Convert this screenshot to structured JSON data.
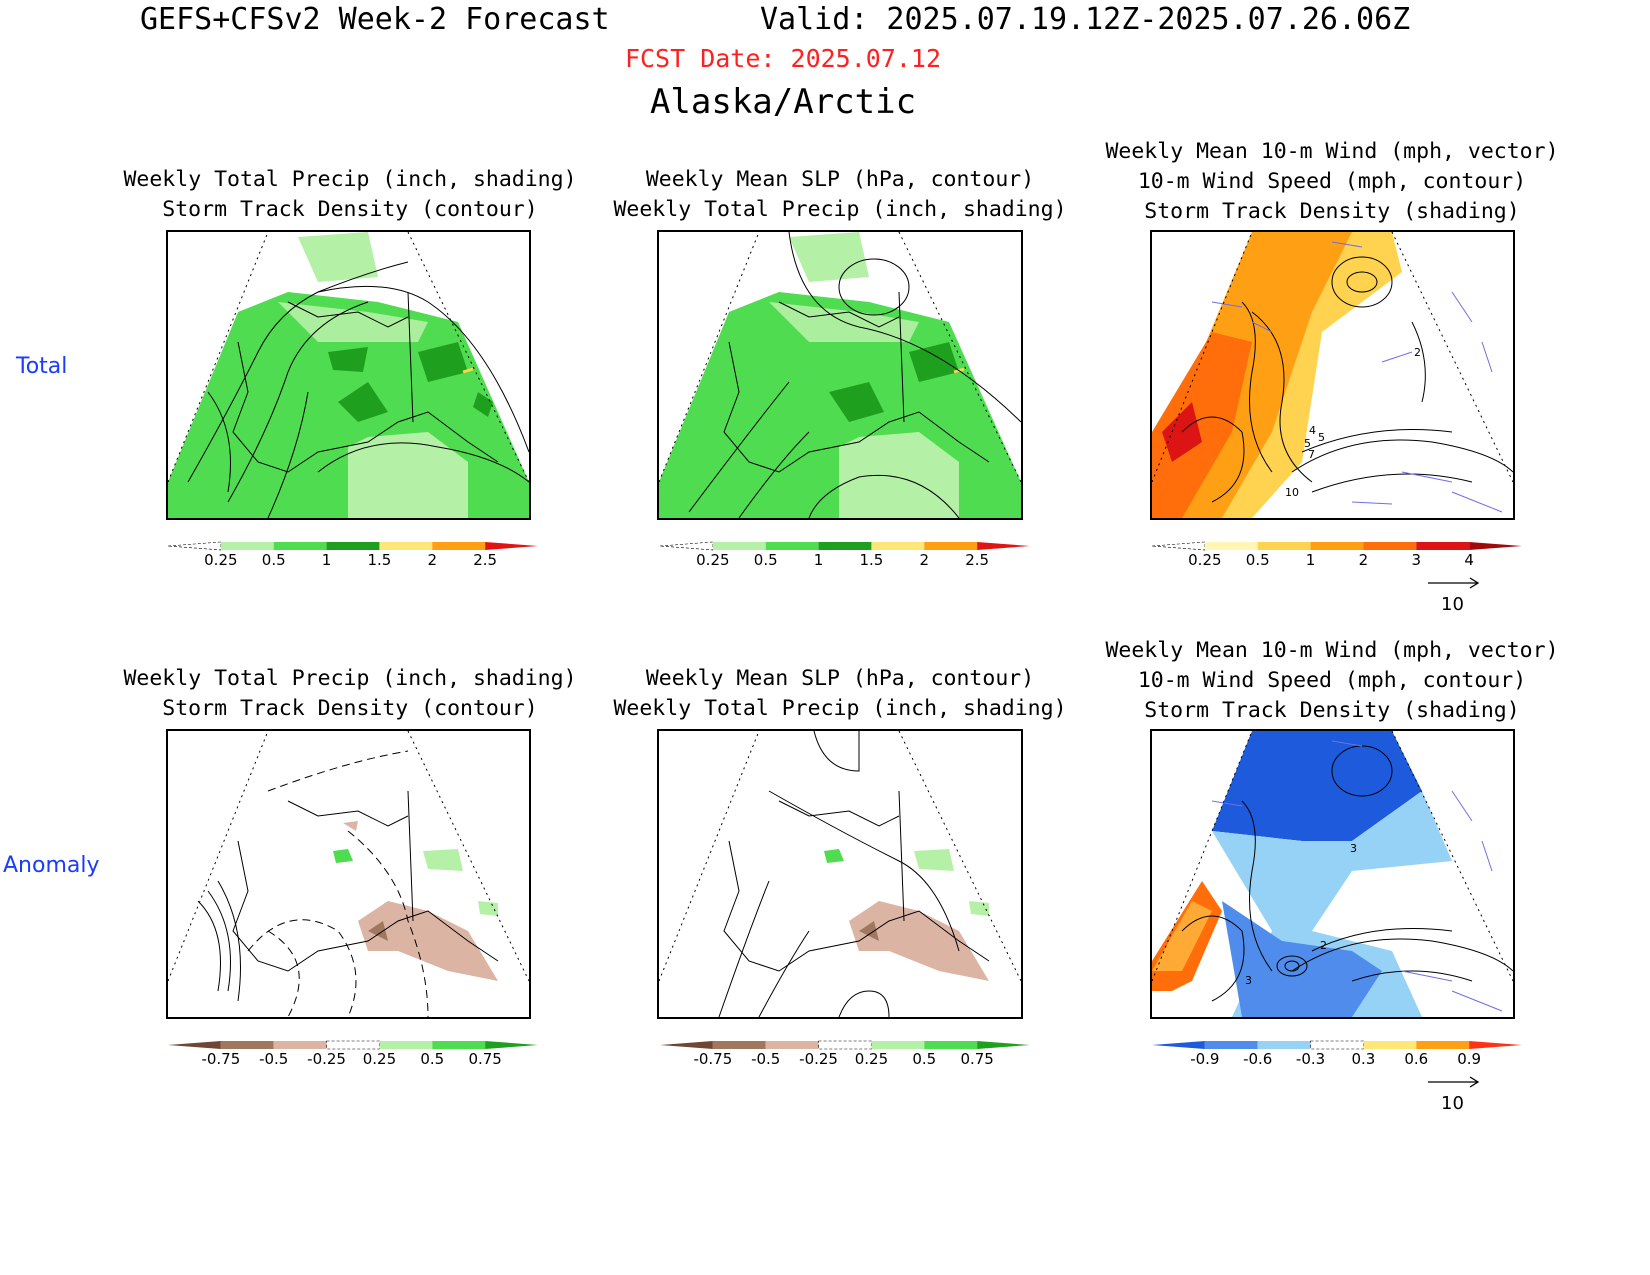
{
  "header": {
    "title": "GEFS+CFSv2 Week-2 Forecast",
    "valid": "Valid: 2025.07.19.12Z-2025.07.26.06Z",
    "fcst_date": "FCST Date: 2025.07.12",
    "region": "Alaska/Arctic"
  },
  "rows": {
    "total_label": "Total",
    "anomaly_label": "Anomaly"
  },
  "panels": {
    "precip_track": {
      "line1": "Weekly Total Precip (inch, shading)",
      "line2": "Storm Track Density (contour)"
    },
    "slp_precip": {
      "line1": "Weekly Mean SLP (hPa, contour)",
      "line2": "Weekly Total Precip (inch, shading)"
    },
    "wind_track": {
      "line1": "Weekly Mean 10-m Wind (mph, vector)",
      "line2": "10-m Wind Speed (mph, contour)",
      "line3": "Storm Track Density (shading)"
    }
  },
  "colorbars": {
    "precip_total": {
      "labels": [
        "0.25",
        "0.5",
        "1",
        "1.5",
        "2",
        "2.5"
      ],
      "colors": [
        "#ffffff",
        "#b4f0a6",
        "#50dc50",
        "#1ea01e",
        "#ffe678",
        "#ffa014",
        "#e11414"
      ]
    },
    "track_total": {
      "labels": [
        "0.25",
        "0.5",
        "1",
        "2",
        "3",
        "4"
      ],
      "colors": [
        "#ffffff",
        "#fff5b4",
        "#ffd250",
        "#ffa014",
        "#ff6e0a",
        "#dc1414",
        "#a00a0a"
      ]
    },
    "precip_anom": {
      "labels": [
        "-0.75",
        "-0.5",
        "-0.25",
        "0.25",
        "0.5",
        "0.75"
      ],
      "colors": [
        "#6e4632",
        "#a07860",
        "#dcb4a4",
        "#ffffff",
        "#b4f0a6",
        "#50dc50",
        "#1ea01e"
      ]
    },
    "track_anom": {
      "labels": [
        "-0.9",
        "-0.6",
        "-0.3",
        "0.3",
        "0.6",
        "0.9"
      ],
      "colors": [
        "#1e5adc",
        "#508ceb",
        "#96d2f5",
        "#ffffff",
        "#ffe678",
        "#ffa014",
        "#ff3214"
      ]
    }
  },
  "vector_ref": {
    "label": "10"
  },
  "contour_labels": {
    "wind_total": [
      "2",
      "4",
      "5",
      "5",
      "7",
      "10"
    ],
    "wind_anom": [
      "2",
      "3",
      "3"
    ]
  },
  "colors": {
    "title_red": "#ff2020",
    "row_label_blue": "#1a3cff",
    "vector_blue": "#6e6ee6"
  }
}
